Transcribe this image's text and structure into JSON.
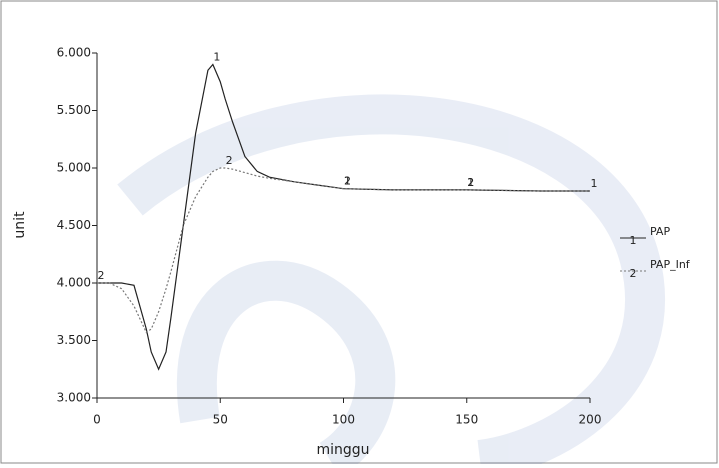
{
  "chart_data": {
    "type": "line",
    "xlabel": "minggu",
    "ylabel": "unit",
    "x": [
      0,
      5,
      10,
      15,
      20,
      22,
      25,
      28,
      30,
      35,
      40,
      45,
      47,
      50,
      52,
      55,
      60,
      65,
      70,
      80,
      90,
      100,
      120,
      150,
      180,
      200
    ],
    "series": [
      {
        "name": "PAP",
        "marker": "1",
        "color": "#222222",
        "dash": "none",
        "values": [
          4.0,
          4.0,
          4.0,
          3.98,
          3.6,
          3.4,
          3.25,
          3.4,
          3.7,
          4.5,
          5.3,
          5.85,
          5.9,
          5.75,
          5.6,
          5.4,
          5.1,
          4.97,
          4.92,
          4.88,
          4.85,
          4.82,
          4.81,
          4.81,
          4.8,
          4.8
        ]
      },
      {
        "name": "PAP_Inf",
        "marker": "2",
        "color": "#777777",
        "dash": "2 2",
        "values": [
          4.0,
          4.0,
          3.95,
          3.8,
          3.57,
          3.6,
          3.75,
          3.95,
          4.1,
          4.5,
          4.75,
          4.92,
          4.97,
          5.0,
          5.0,
          4.99,
          4.96,
          4.93,
          4.91,
          4.88,
          4.85,
          4.82,
          4.81,
          4.81,
          4.8,
          4.8
        ]
      }
    ],
    "xlim": [
      0,
      200
    ],
    "xticks": [
      0,
      50,
      100,
      150,
      200
    ],
    "ylim": [
      3,
      6
    ],
    "yticks": [
      {
        "value": 3,
        "label": "3.000"
      },
      {
        "value": 3.5,
        "label": "3.500"
      },
      {
        "value": 4,
        "label": "4.000"
      },
      {
        "value": 4.5,
        "label": "4.500"
      },
      {
        "value": 5,
        "label": "5.000"
      },
      {
        "value": 5.5,
        "label": "5.500"
      },
      {
        "value": 6,
        "label": "6.000"
      }
    ],
    "legend": "right"
  }
}
